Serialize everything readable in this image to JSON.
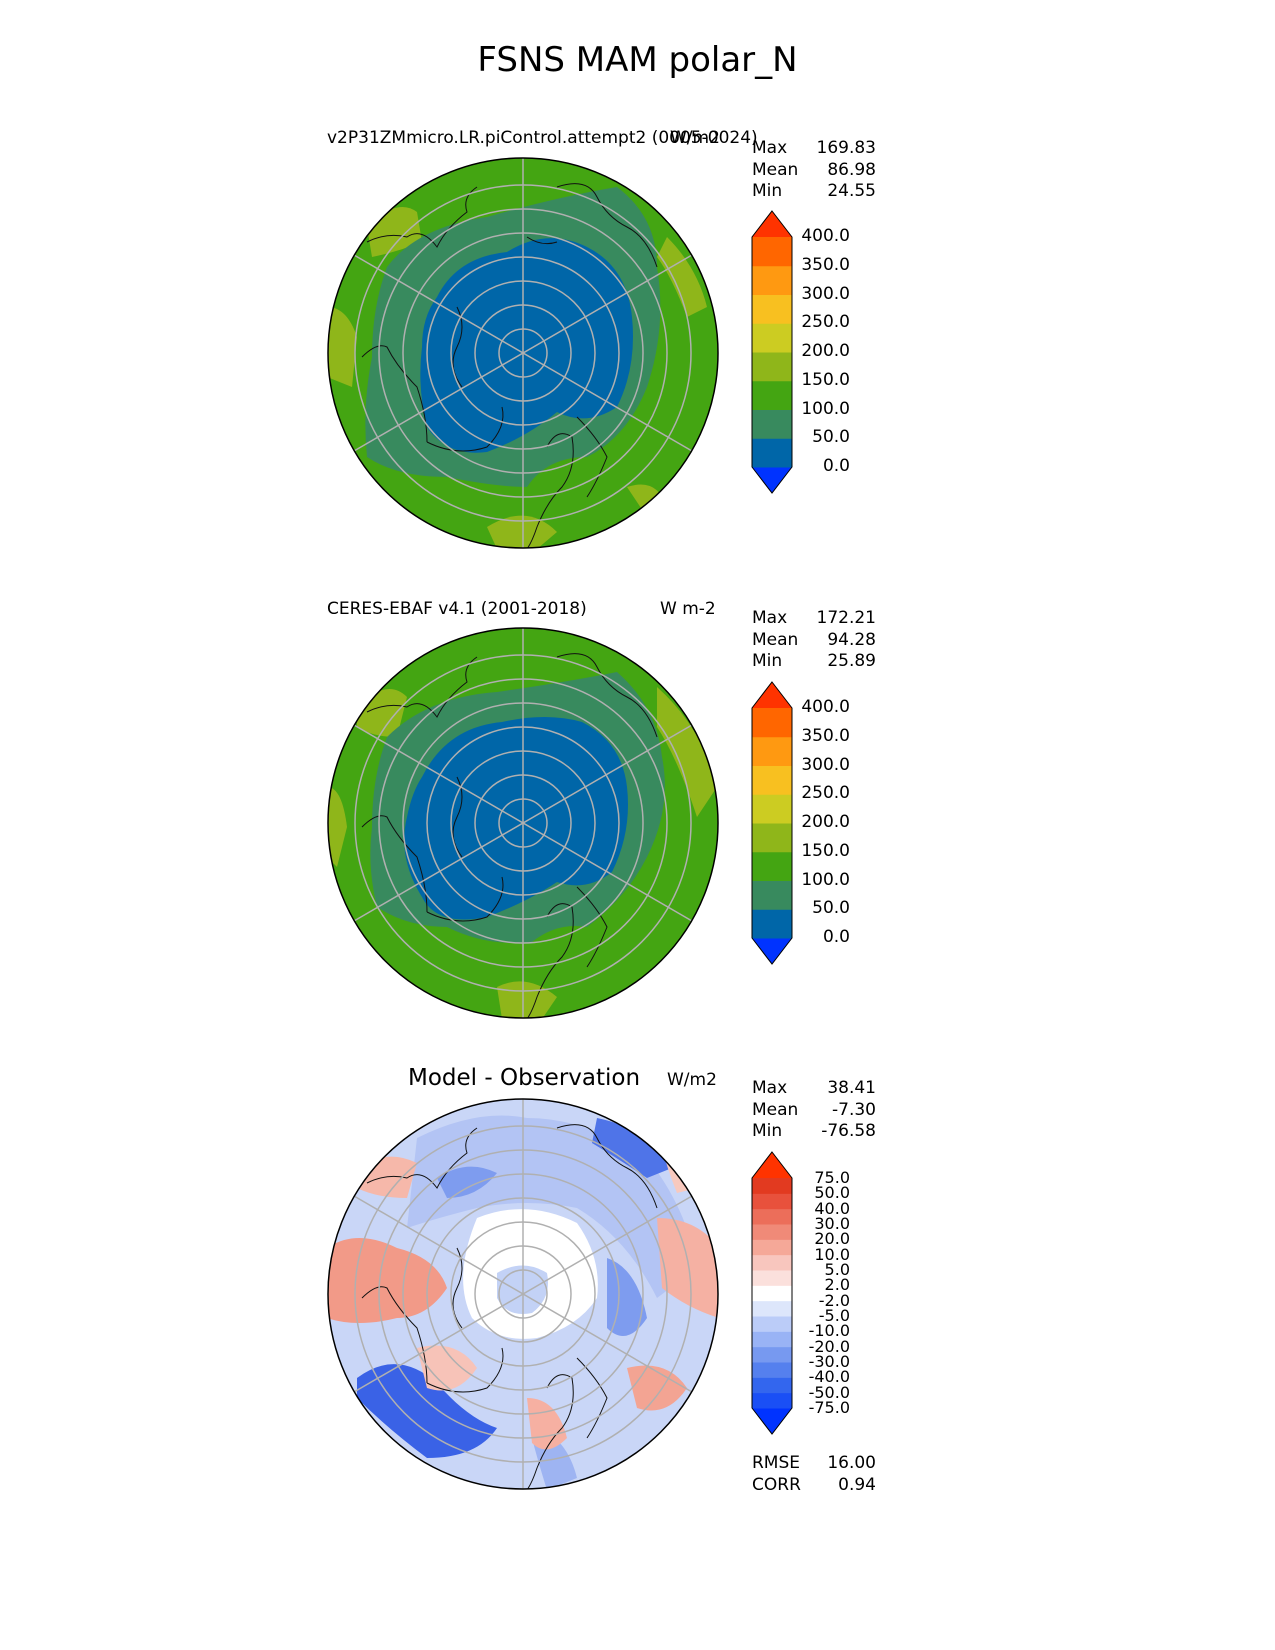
{
  "title": "FSNS MAM polar_N",
  "panels": [
    {
      "id": "model",
      "title": "v2P31ZMmicro.LR.piControl.attempt2 (0005-0024)",
      "units": "W/m2",
      "stats": {
        "max_label": "Max",
        "max": "169.83",
        "mean_label": "Mean",
        "mean": "86.98",
        "min_label": "Min",
        "min": "24.55"
      },
      "colorbar": {
        "labels": [
          "0.0",
          "50.0",
          "100.0",
          "150.0",
          "200.0",
          "250.0",
          "300.0",
          "350.0",
          "400.0"
        ],
        "colors": [
          "#0033ff",
          "#0066a8",
          "#388a5e",
          "#44a512",
          "#8fb61a",
          "#cccc22",
          "#f8c020",
          "#ff9911",
          "#ff6600",
          "#ff3300"
        ]
      }
    },
    {
      "id": "obs",
      "title": "CERES-EBAF v4.1 (2001-2018)",
      "units": "W m-2",
      "stats": {
        "max_label": "Max",
        "max": "172.21",
        "mean_label": "Mean",
        "mean": "94.28",
        "min_label": "Min",
        "min": "25.89"
      },
      "colorbar": {
        "labels": [
          "0.0",
          "50.0",
          "100.0",
          "150.0",
          "200.0",
          "250.0",
          "300.0",
          "350.0",
          "400.0"
        ],
        "colors": [
          "#0033ff",
          "#0066a8",
          "#388a5e",
          "#44a512",
          "#8fb61a",
          "#cccc22",
          "#f8c020",
          "#ff9911",
          "#ff6600",
          "#ff3300"
        ]
      }
    },
    {
      "id": "diff",
      "title": "Model - Observation",
      "units": "W/m2",
      "stats": {
        "max_label": "Max",
        "max": "38.41",
        "mean_label": "Mean",
        "mean": "-7.30",
        "min_label": "Min",
        "min": "-76.58"
      },
      "colorbar": {
        "labels": [
          "-75.0",
          "-50.0",
          "-40.0",
          "-30.0",
          "-20.0",
          "-10.0",
          "-5.0",
          "-2.0",
          "2.0",
          "5.0",
          "10.0",
          "20.0",
          "30.0",
          "40.0",
          "50.0",
          "75.0"
        ],
        "colors": [
          "#0033ff",
          "#1a4ff5",
          "#3366ee",
          "#5580ee",
          "#7799f0",
          "#99b3f5",
          "#bbccf8",
          "#dde6fb",
          "#ffffff",
          "#fbe0dc",
          "#f8c6be",
          "#f5a898",
          "#f08a78",
          "#ec6e5a",
          "#e8513c",
          "#e23a20",
          "#ff3300"
        ]
      },
      "rmse_label": "RMSE",
      "rmse": "16.00",
      "corr_label": "CORR",
      "corr": "0.94"
    }
  ]
}
